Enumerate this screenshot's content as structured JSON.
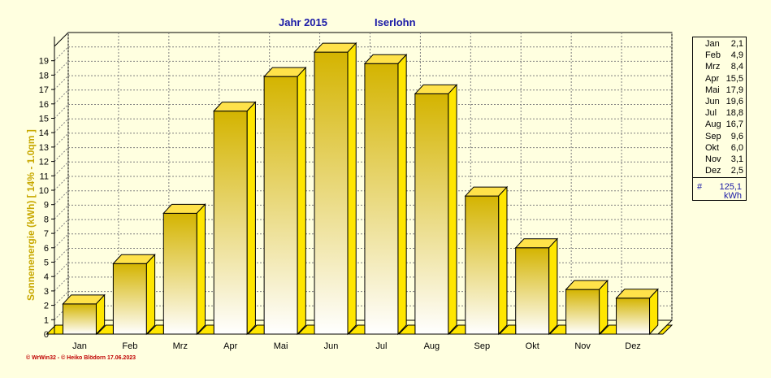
{
  "header": {
    "year_label": "Jahr  2015",
    "location": "Iserlohn"
  },
  "chart_data": {
    "type": "bar",
    "categories": [
      "Jan",
      "Feb",
      "Mrz",
      "Apr",
      "Mai",
      "Jun",
      "Jul",
      "Aug",
      "Sep",
      "Okt",
      "Nov",
      "Dez"
    ],
    "values": [
      2.1,
      4.9,
      8.4,
      15.5,
      17.9,
      19.6,
      18.8,
      16.7,
      9.6,
      6.0,
      3.1,
      2.5
    ],
    "value_labels": [
      "2,1",
      "4,9",
      "8,4",
      "15,5",
      "17,9",
      "19,6",
      "18,8",
      "16,7",
      "9,6",
      "6,0",
      "3,1",
      "2,5"
    ],
    "title": "Jahr  2015",
    "ylabel": "Sonnenenergie   (kWh)      [ 14% - 1.0qm ]",
    "ylim": [
      0,
      20
    ],
    "yticks": [
      0,
      1,
      2,
      3,
      4,
      5,
      6,
      7,
      8,
      9,
      10,
      11,
      12,
      13,
      14,
      15,
      16,
      17,
      18,
      19
    ],
    "grid": true,
    "legend_placement": "right",
    "colors": {
      "bar_top": "#d4b400",
      "bar_bottom": "#ffffff",
      "bar_cap": "#ffe24a",
      "bar_side": "#ffe600",
      "axis_label": "#c8a800",
      "title": "#1a1aa6",
      "background": "#ffffe0"
    }
  },
  "legend": {
    "total_symbol": "#",
    "total_value": "125,1",
    "total_unit": "kWh"
  },
  "footer": {
    "credit": "© WrWin32  -  © Heiko Blödorn  17.06.2023"
  }
}
